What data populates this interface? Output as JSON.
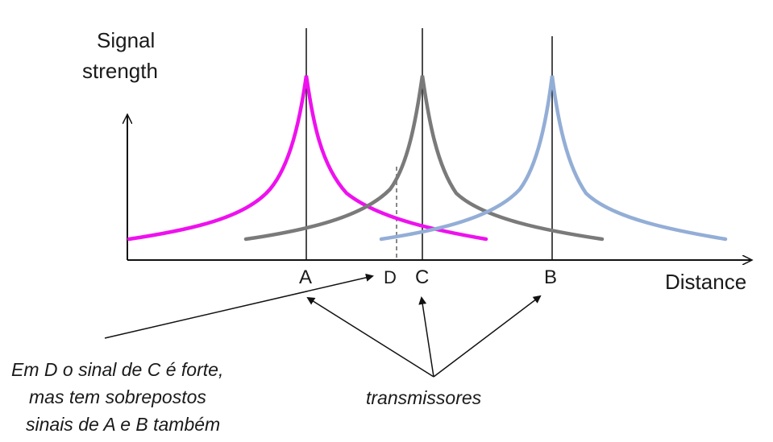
{
  "axes": {
    "y_label_line1": "Signal",
    "y_label_line2": "strength",
    "x_label": "Distance"
  },
  "points": {
    "a": "A",
    "d": "D",
    "c": "C",
    "b": "B"
  },
  "annotations": {
    "note_line1": "Em D o sinal de C é forte,",
    "note_line2": "mas tem sobrepostos",
    "note_line3": "sinais de A e B também",
    "transmitters": "transmissores"
  },
  "colors": {
    "curve_a": "#ee11ee",
    "curve_c": "#7a7a7a",
    "curve_b": "#93aed6"
  }
}
